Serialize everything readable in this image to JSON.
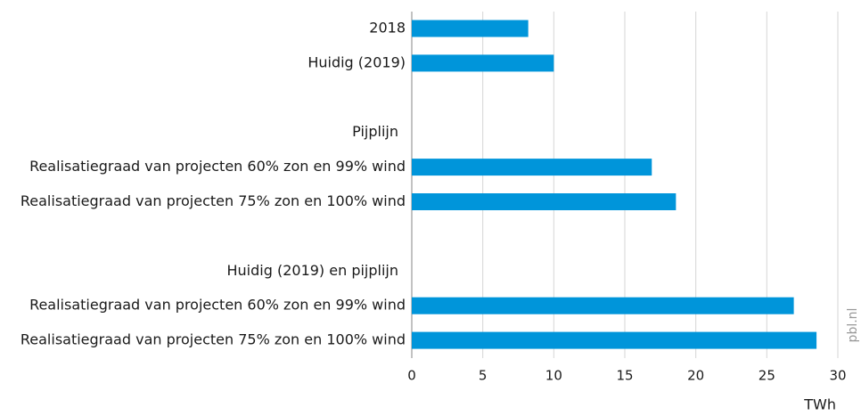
{
  "chart_data": {
    "type": "bar",
    "orientation": "horizontal",
    "categories": [
      "2018",
      "Huidig (2019)",
      null,
      "Pijplijn",
      "Realisatiegraad van projecten 60% zon en 99% wind",
      "Realisatiegraad van projecten 75% zon en 100% wind",
      null,
      "Huidig (2019) en pijplijn",
      "Realisatiegraad van projecten 60% zon en 99% wind",
      "Realisatiegraad van projecten 75% zon en 100% wind"
    ],
    "values": [
      8.2,
      10.0,
      null,
      null,
      16.9,
      18.6,
      null,
      null,
      26.9,
      28.5
    ],
    "color": "#0095da",
    "xlim": [
      0,
      30
    ],
    "xticks": [
      0,
      5,
      10,
      15,
      20,
      25,
      30
    ],
    "xlabel": "TWh",
    "source": "pbl.nl",
    "grid": true
  }
}
